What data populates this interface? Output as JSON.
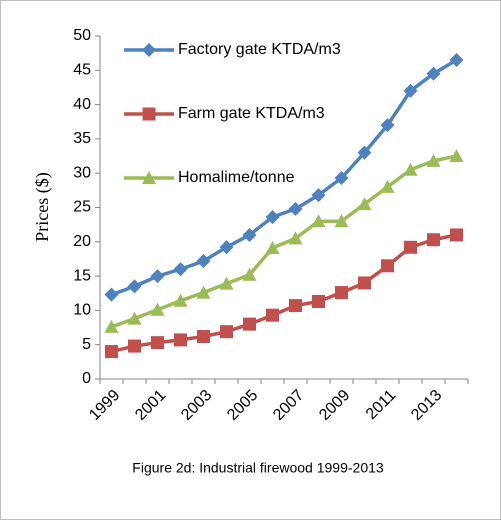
{
  "chart_data": {
    "type": "line",
    "caption": "Figure 2d: Industrial firewood 1999-2013",
    "y_label": "Prices ($)",
    "categories": [
      "1999",
      null,
      "2001",
      null,
      "2003",
      null,
      "2005",
      null,
      "2007",
      null,
      "2009",
      null,
      "2011",
      null,
      "2013",
      null
    ],
    "series": [
      {
        "name": "Factory gate KTDA/m3",
        "color": "#4f81bd",
        "marker": "diamond",
        "values": [
          12.3,
          13.5,
          15,
          16,
          17.2,
          19.2,
          21,
          23.6,
          24.8,
          26.8,
          29.3,
          33,
          37,
          42,
          44.5,
          46.5
        ]
      },
      {
        "name": "Farm gate KTDA/m3",
        "color": "#c0504d",
        "marker": "square",
        "values": [
          4,
          4.8,
          5.3,
          5.7,
          6.2,
          6.9,
          8,
          9.3,
          10.7,
          11.3,
          12.6,
          14,
          16.5,
          19.2,
          20.3,
          21
        ]
      },
      {
        "name": "Homalime/tonne",
        "color": "#9bbb59",
        "marker": "triangle",
        "values": [
          7.6,
          8.8,
          10.1,
          11.4,
          12.6,
          13.9,
          15.2,
          19.1,
          20.5,
          23,
          23,
          25.5,
          28,
          30.5,
          31.8,
          32.5
        ]
      }
    ],
    "ylim": [
      0,
      50
    ],
    "yticks": [
      0,
      5,
      10,
      15,
      20,
      25,
      30,
      35,
      40,
      45,
      50
    ],
    "grid": false,
    "legend": "upper left"
  }
}
